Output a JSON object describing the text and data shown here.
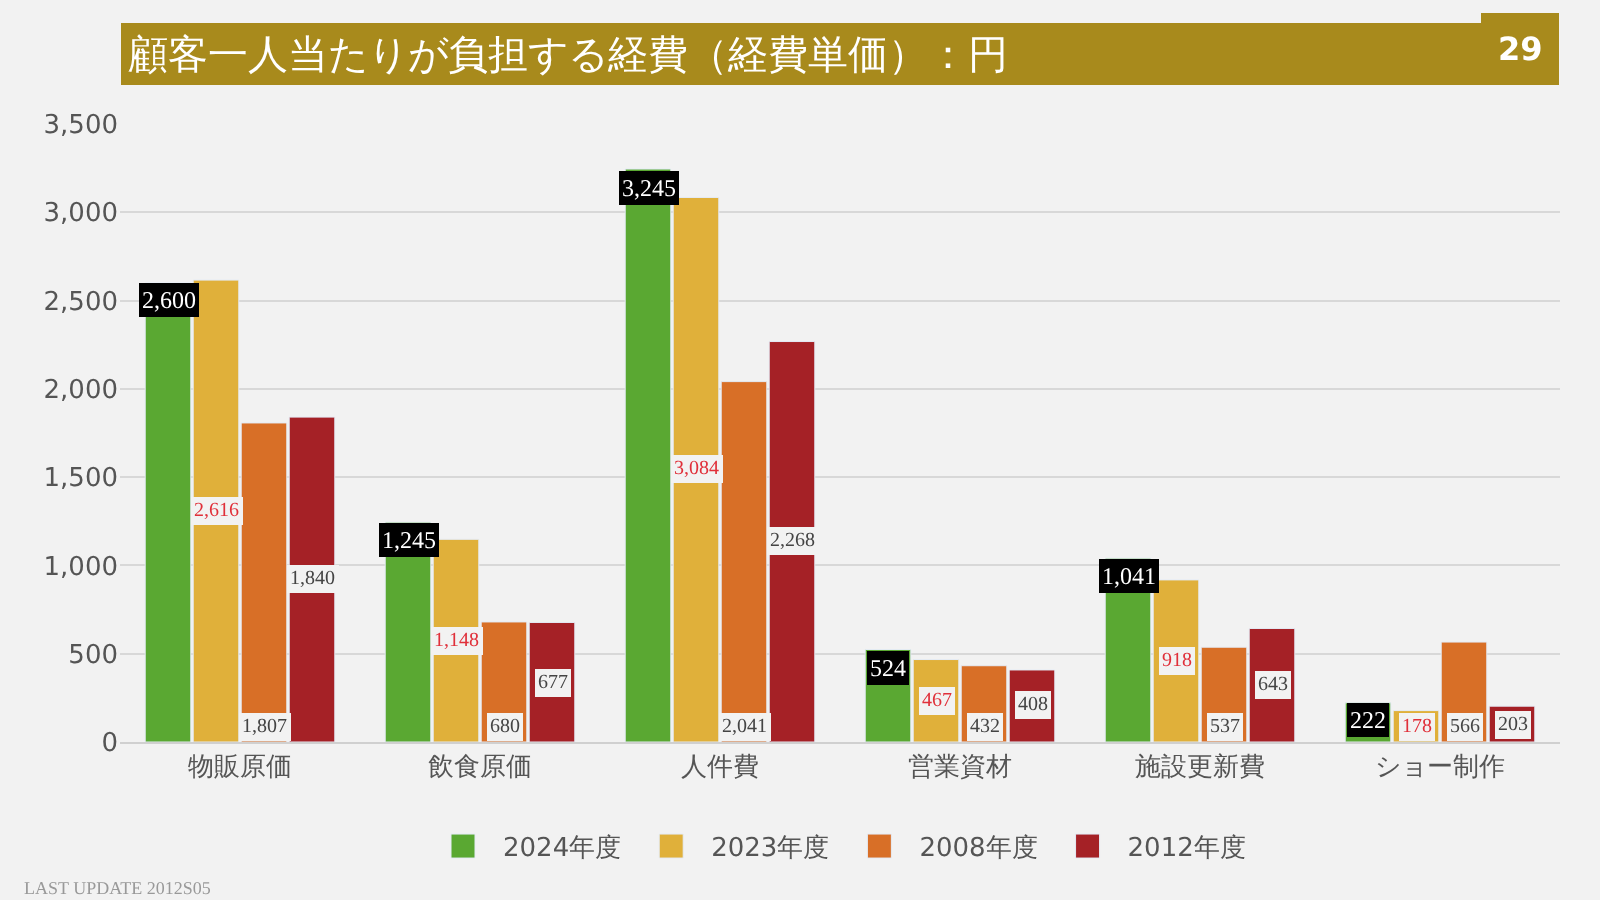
{
  "chart_data": {
    "type": "bar",
    "title": "顧客一人当たりが負担する経費（経費単価）：円",
    "subtitle": "29",
    "categories": [
      "物販原価",
      "飲食原価",
      "人件費",
      "営業資材",
      "施設更新費",
      "ショー制作"
    ],
    "series": [
      {
        "name": "2024年度",
        "color": "#5aa832",
        "values": [
          2600,
          1245,
          3245,
          524,
          1041,
          222
        ],
        "value_labels": [
          "2,600",
          "1,245",
          "3,245",
          "524",
          "1,041",
          "222"
        ]
      },
      {
        "name": "2023年度",
        "color": "#e0b03a",
        "values": [
          2616,
          1148,
          3084,
          467,
          918,
          178
        ],
        "value_labels": [
          "2,616",
          "1,148",
          "3,084",
          "467",
          "918",
          "178"
        ]
      },
      {
        "name": "2008年度",
        "color": "#d86f27",
        "values": [
          1807,
          680,
          2041,
          432,
          537,
          566
        ],
        "value_labels": [
          "1,807",
          "680",
          "2,041",
          "432",
          "537",
          "566"
        ]
      },
      {
        "name": "2012年度",
        "color": "#a52126",
        "values": [
          1840,
          677,
          2268,
          408,
          643,
          203
        ],
        "value_labels": [
          "1,840",
          "677",
          "2,268",
          "408",
          "643",
          "203"
        ]
      }
    ],
    "ylim": [
      0,
      3500
    ],
    "yticks": [
      {
        "value": 0,
        "label": "0"
      },
      {
        "value": 500,
        "label": "500"
      },
      {
        "value": 1000,
        "label": "1,000"
      },
      {
        "value": 1500,
        "label": "1,500"
      },
      {
        "value": 2000,
        "label": "2,000"
      },
      {
        "value": 2500,
        "label": "2,500"
      },
      {
        "value": 3000,
        "label": "3,000"
      },
      {
        "value": 3500,
        "label": "3,500"
      }
    ],
    "grid": "y",
    "legend": "bottom",
    "annotations": [
      "LAST UPDATE 2012S05"
    ]
  }
}
